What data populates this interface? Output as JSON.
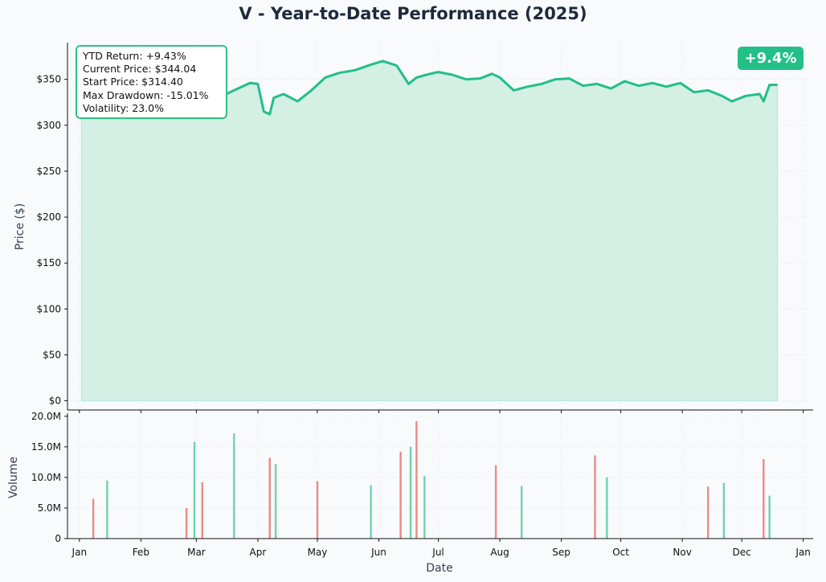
{
  "title": "V - Year-to-Date Performance (2025)",
  "badge": "+9.4%",
  "stats": {
    "ytd_return": "YTD Return: +9.43%",
    "current_price": "Current Price: $344.04",
    "start_price": "Start Price: $314.40",
    "max_drawdown": "Max Drawdown: -15.01%",
    "volatility": "Volatility: 23.0%"
  },
  "colors": {
    "line": "#22bf86",
    "fill": "#d4efe4",
    "up_volume": "#6fd2ac",
    "down_volume": "#ec8a86",
    "badge": "#22c087",
    "background": "#f8fafc"
  },
  "chart_data": [
    {
      "type": "area",
      "xlabel": "",
      "ylabel": "Price ($)",
      "ylim": [
        -10,
        390
      ],
      "yticks": [
        0,
        50,
        100,
        150,
        200,
        250,
        300,
        350
      ],
      "ytick_labels": [
        "$0",
        "$50",
        "$100",
        "$150",
        "$200",
        "$250",
        "$300",
        "$350"
      ],
      "grid": true,
      "x": [
        "2025-01-02",
        "2025-01-10",
        "2025-01-20",
        "2025-02-01",
        "2025-02-10",
        "2025-02-20",
        "2025-02-28",
        "2025-03-05",
        "2025-03-12",
        "2025-03-20",
        "2025-03-28",
        "2025-04-01",
        "2025-04-04",
        "2025-04-07",
        "2025-04-09",
        "2025-04-14",
        "2025-04-21",
        "2025-04-28",
        "2025-05-05",
        "2025-05-12",
        "2025-05-20",
        "2025-05-28",
        "2025-06-03",
        "2025-06-10",
        "2025-06-16",
        "2025-06-20",
        "2025-06-25",
        "2025-07-01",
        "2025-07-08",
        "2025-07-15",
        "2025-07-22",
        "2025-07-28",
        "2025-08-01",
        "2025-08-08",
        "2025-08-15",
        "2025-08-22",
        "2025-08-29",
        "2025-09-05",
        "2025-09-12",
        "2025-09-19",
        "2025-09-26",
        "2025-10-03",
        "2025-10-10",
        "2025-10-17",
        "2025-10-24",
        "2025-10-31",
        "2025-11-07",
        "2025-11-14",
        "2025-11-21",
        "2025-11-26",
        "2025-12-03",
        "2025-12-10",
        "2025-12-12",
        "2025-12-15",
        "2025-12-19"
      ],
      "series": [
        {
          "values": [
            314.4,
            308,
            312,
            322,
            336,
            345,
            362,
            348,
            330,
            338,
            346,
            345,
            315,
            312,
            330,
            334,
            326,
            338,
            352,
            357,
            360,
            366,
            370,
            365,
            345,
            352,
            355,
            358,
            355,
            350,
            351,
            356,
            352,
            338,
            342,
            345,
            350,
            351,
            343,
            345,
            340,
            348,
            343,
            346,
            342,
            346,
            336,
            338,
            332,
            326,
            332,
            334,
            326,
            344,
            344.04
          ]
        }
      ]
    },
    {
      "type": "bar",
      "xlabel": "Date",
      "ylabel": "Volume",
      "ylim": [
        0,
        20500000
      ],
      "yticks": [
        0,
        5000000,
        10000000,
        15000000,
        20000000
      ],
      "ytick_labels": [
        "0",
        "5.0M",
        "10.0M",
        "15.0M",
        "20.0M"
      ],
      "grid": true,
      "xtick_labels": [
        "Jan",
        "Feb",
        "Mar",
        "Apr",
        "May",
        "Jun",
        "Jul",
        "Aug",
        "Sep",
        "Oct",
        "Nov",
        "Dec",
        "Jan"
      ],
      "x": [
        "2025-01-08",
        "2025-01-15",
        "2025-02-24",
        "2025-02-28",
        "2025-03-04",
        "2025-03-20",
        "2025-04-07",
        "2025-04-10",
        "2025-05-01",
        "2025-05-28",
        "2025-06-12",
        "2025-06-17",
        "2025-06-20",
        "2025-06-24",
        "2025-07-30",
        "2025-08-12",
        "2025-09-18",
        "2025-09-24",
        "2025-11-14",
        "2025-11-22",
        "2025-12-12",
        "2025-12-15"
      ],
      "values": [
        6500000,
        9500000,
        5000000,
        15800000,
        9200000,
        17200000,
        13200000,
        12200000,
        9400000,
        8700000,
        14200000,
        15000000,
        19200000,
        10200000,
        12000000,
        8600000,
        13600000,
        10000000,
        8500000,
        9100000,
        13000000,
        7000000
      ]
    }
  ]
}
